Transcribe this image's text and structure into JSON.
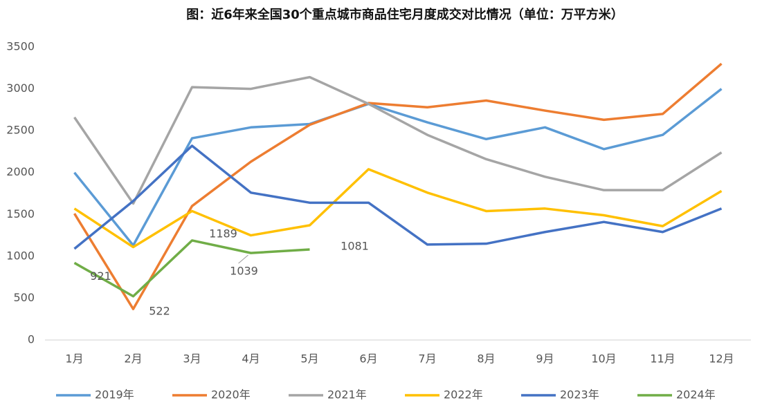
{
  "chart_data": {
    "type": "line",
    "title": "图：近6年来全国30个重点城市商品住宅月度成交对比情况（单位：万平方米）",
    "categories": [
      "1月",
      "2月",
      "3月",
      "4月",
      "5月",
      "6月",
      "7月",
      "8月",
      "9月",
      "10月",
      "11月",
      "12月"
    ],
    "series": [
      {
        "name": "2019年",
        "color": "#5b9bd5",
        "values": [
          2000,
          1130,
          2410,
          2540,
          2580,
          2820,
          2600,
          2400,
          2540,
          2280,
          2450,
          3000
        ]
      },
      {
        "name": "2020年",
        "color": "#ed7d31",
        "values": [
          1510,
          370,
          1600,
          2130,
          2570,
          2830,
          2780,
          2860,
          2740,
          2630,
          2700,
          3300
        ]
      },
      {
        "name": "2021年",
        "color": "#a5a5a5",
        "values": [
          2660,
          1630,
          3020,
          3000,
          3140,
          2820,
          2450,
          2160,
          1950,
          1790,
          1790,
          2240
        ]
      },
      {
        "name": "2022年",
        "color": "#ffc000",
        "values": [
          1570,
          1110,
          1540,
          1250,
          1370,
          2040,
          1760,
          1540,
          1570,
          1490,
          1360,
          1780
        ]
      },
      {
        "name": "2023年",
        "color": "#4472c4",
        "values": [
          1090,
          1660,
          2320,
          1760,
          1640,
          1640,
          1140,
          1150,
          1290,
          1410,
          1290,
          1570
        ]
      },
      {
        "name": "2024年",
        "color": "#70ad47",
        "values": [
          921,
          522,
          1189,
          1039,
          1081,
          null,
          null,
          null,
          null,
          null,
          null,
          null
        ]
      }
    ],
    "ylim": [
      0,
      3500
    ],
    "yticks": [
      0,
      500,
      1000,
      1500,
      2000,
      2500,
      3000,
      3500
    ],
    "data_labels_series": 5,
    "legend": "bottom"
  }
}
